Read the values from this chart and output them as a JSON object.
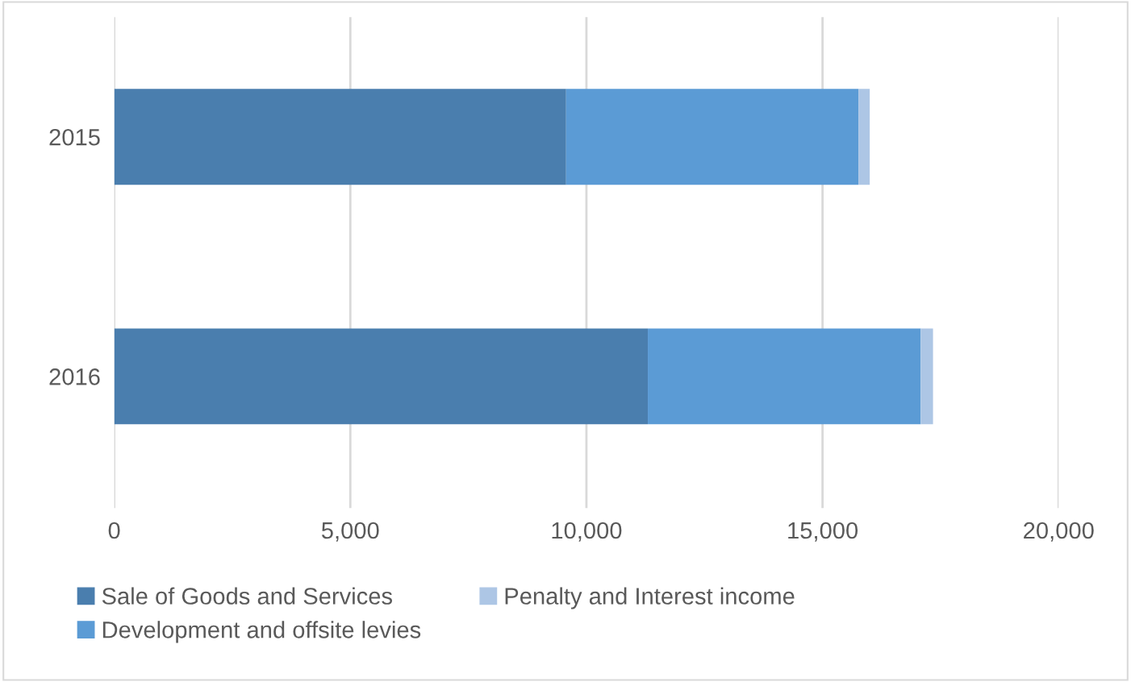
{
  "chart_data": {
    "type": "bar",
    "orientation": "horizontal",
    "stacked": true,
    "categories": [
      "2015",
      "2016"
    ],
    "series": [
      {
        "name": "Sale of Goods and Services",
        "color": "#4a7eae",
        "values": [
          9570,
          11300
        ]
      },
      {
        "name": "Development and offsite levies",
        "color": "#5b9bd5",
        "values": [
          6190,
          5780
        ]
      },
      {
        "name": "Penalty and Interest income",
        "color": "#adc6e5",
        "values": [
          240,
          260
        ]
      }
    ],
    "xlim": [
      0,
      20000
    ],
    "xticks": [
      {
        "value": 0,
        "label": "0"
      },
      {
        "value": 5000,
        "label": "5,000"
      },
      {
        "value": 10000,
        "label": "10,000"
      },
      {
        "value": 15000,
        "label": "15,000"
      },
      {
        "value": 20000,
        "label": "20,000"
      }
    ],
    "grid": "x",
    "legend": "bottom"
  }
}
